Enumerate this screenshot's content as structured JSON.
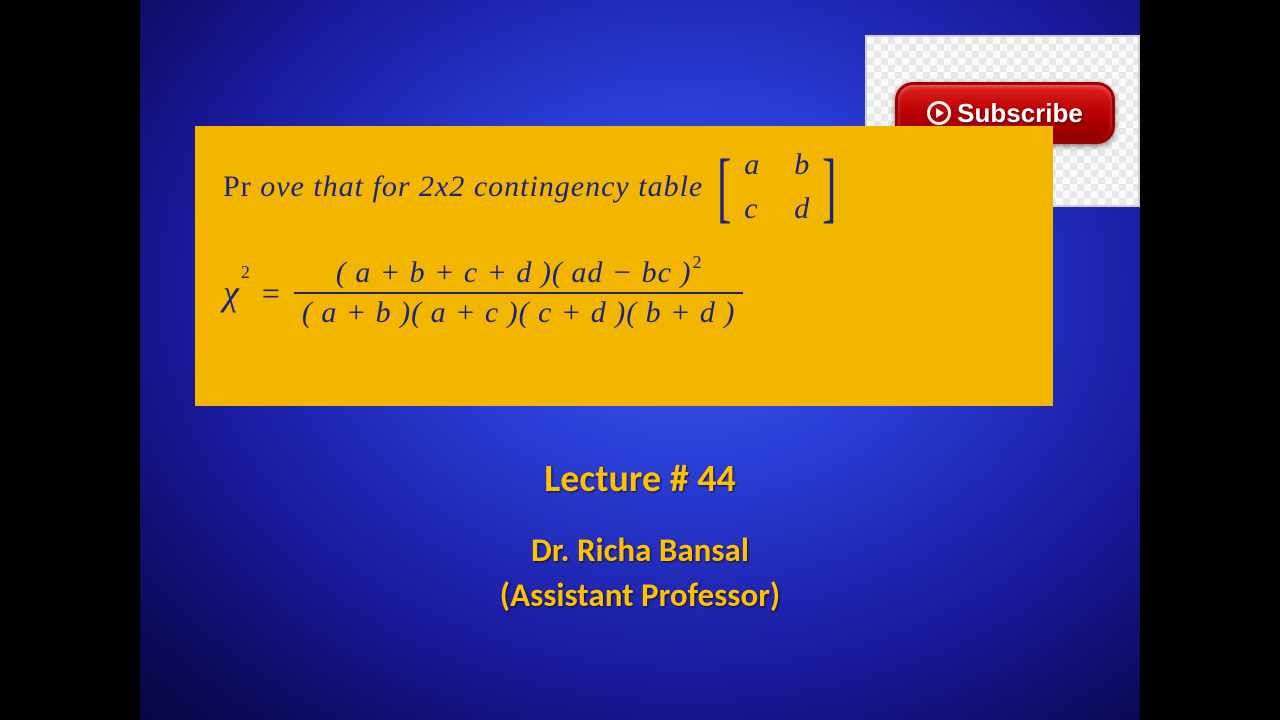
{
  "subscribe": {
    "label": "Subscribe"
  },
  "formula": {
    "prefix_roman": "Pr",
    "line1_rest": "ove that  for 2x2 contingency table",
    "matrix": {
      "a": "a",
      "b": "b",
      "c": "c",
      "d": "d"
    },
    "chi_symbol": "χ",
    "chi_power": "2",
    "equals": "=",
    "numerator_l": "( a + b + c + d )",
    "numerator_r": "( ad − bc )",
    "numerator_sq": "2",
    "denominator": "( a + b )( a + c )( c + d )( b + d )"
  },
  "lecture": "Lecture # 44",
  "author_name": "Dr.   Richa Bansal",
  "author_role": "(Assistant Professor)",
  "colors": {
    "box_bg": "#f2b600",
    "text_formula": "#1a237e",
    "accent": "#ffc000",
    "subscribe_bg": "#c00000"
  }
}
